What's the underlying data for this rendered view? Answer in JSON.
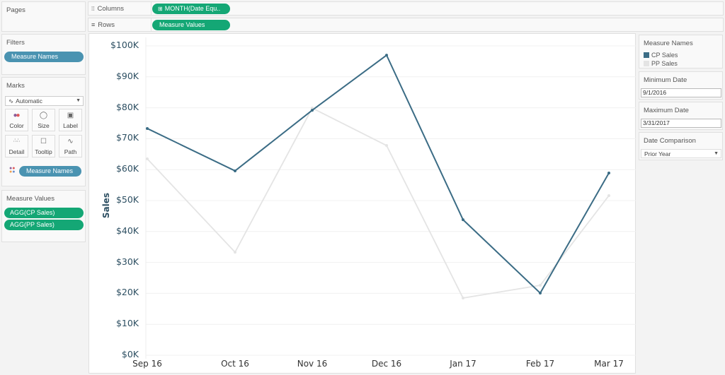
{
  "shelves": {
    "pages_label": "Pages",
    "columns_label": "Columns",
    "columns_pill": "MONTH(Date Equ..",
    "rows_label": "Rows",
    "rows_pill": "Measure Values"
  },
  "filters": {
    "title": "Filters",
    "pill": "Measure Names"
  },
  "marks": {
    "title": "Marks",
    "type": "Automatic",
    "buttons": [
      "Color",
      "Size",
      "Label",
      "Detail",
      "Tooltip",
      "Path"
    ],
    "color_pill": "Measure Names"
  },
  "measure_values": {
    "title": "Measure Values",
    "pills": [
      "AGG(CP Sales)",
      "AGG(PP Sales)"
    ]
  },
  "legend": {
    "title": "Measure Names",
    "items": [
      {
        "label": "CP Sales",
        "color": "#3b6c85"
      },
      {
        "label": "PP Sales",
        "color": "#e4e4e4"
      }
    ]
  },
  "parameters": {
    "min_date_title": "Minimum Date",
    "min_date_value": "9/1/2016",
    "max_date_title": "Maximum Date",
    "max_date_value": "3/31/2017",
    "comparison_title": "Date Comparison",
    "comparison_value": "Prior Year"
  },
  "colors": {
    "cp": "#3b6c85",
    "pp": "#e4e4e4",
    "pill_blue": "#4a93b1",
    "pill_green": "#14a775"
  },
  "chart_data": {
    "type": "line",
    "title": "",
    "xlabel": "",
    "ylabel": "Sales",
    "categories": [
      "Sep 16",
      "Oct 16",
      "Nov 16",
      "Dec 16",
      "Jan 17",
      "Feb 17",
      "Mar 17"
    ],
    "series": [
      {
        "name": "CP Sales",
        "color": "#3b6c85",
        "values": [
          73300,
          59600,
          79200,
          97000,
          43800,
          20100,
          58900
        ]
      },
      {
        "name": "PP Sales",
        "color": "#e4e4e4",
        "values": [
          63500,
          33300,
          79900,
          67800,
          18500,
          22600,
          51600
        ]
      }
    ],
    "yticks": [
      "$0K",
      "$10K",
      "$20K",
      "$30K",
      "$40K",
      "$50K",
      "$60K",
      "$70K",
      "$80K",
      "$90K",
      "$100K"
    ],
    "ylim": [
      0,
      100000
    ],
    "grid": true,
    "legend_position": "right"
  }
}
